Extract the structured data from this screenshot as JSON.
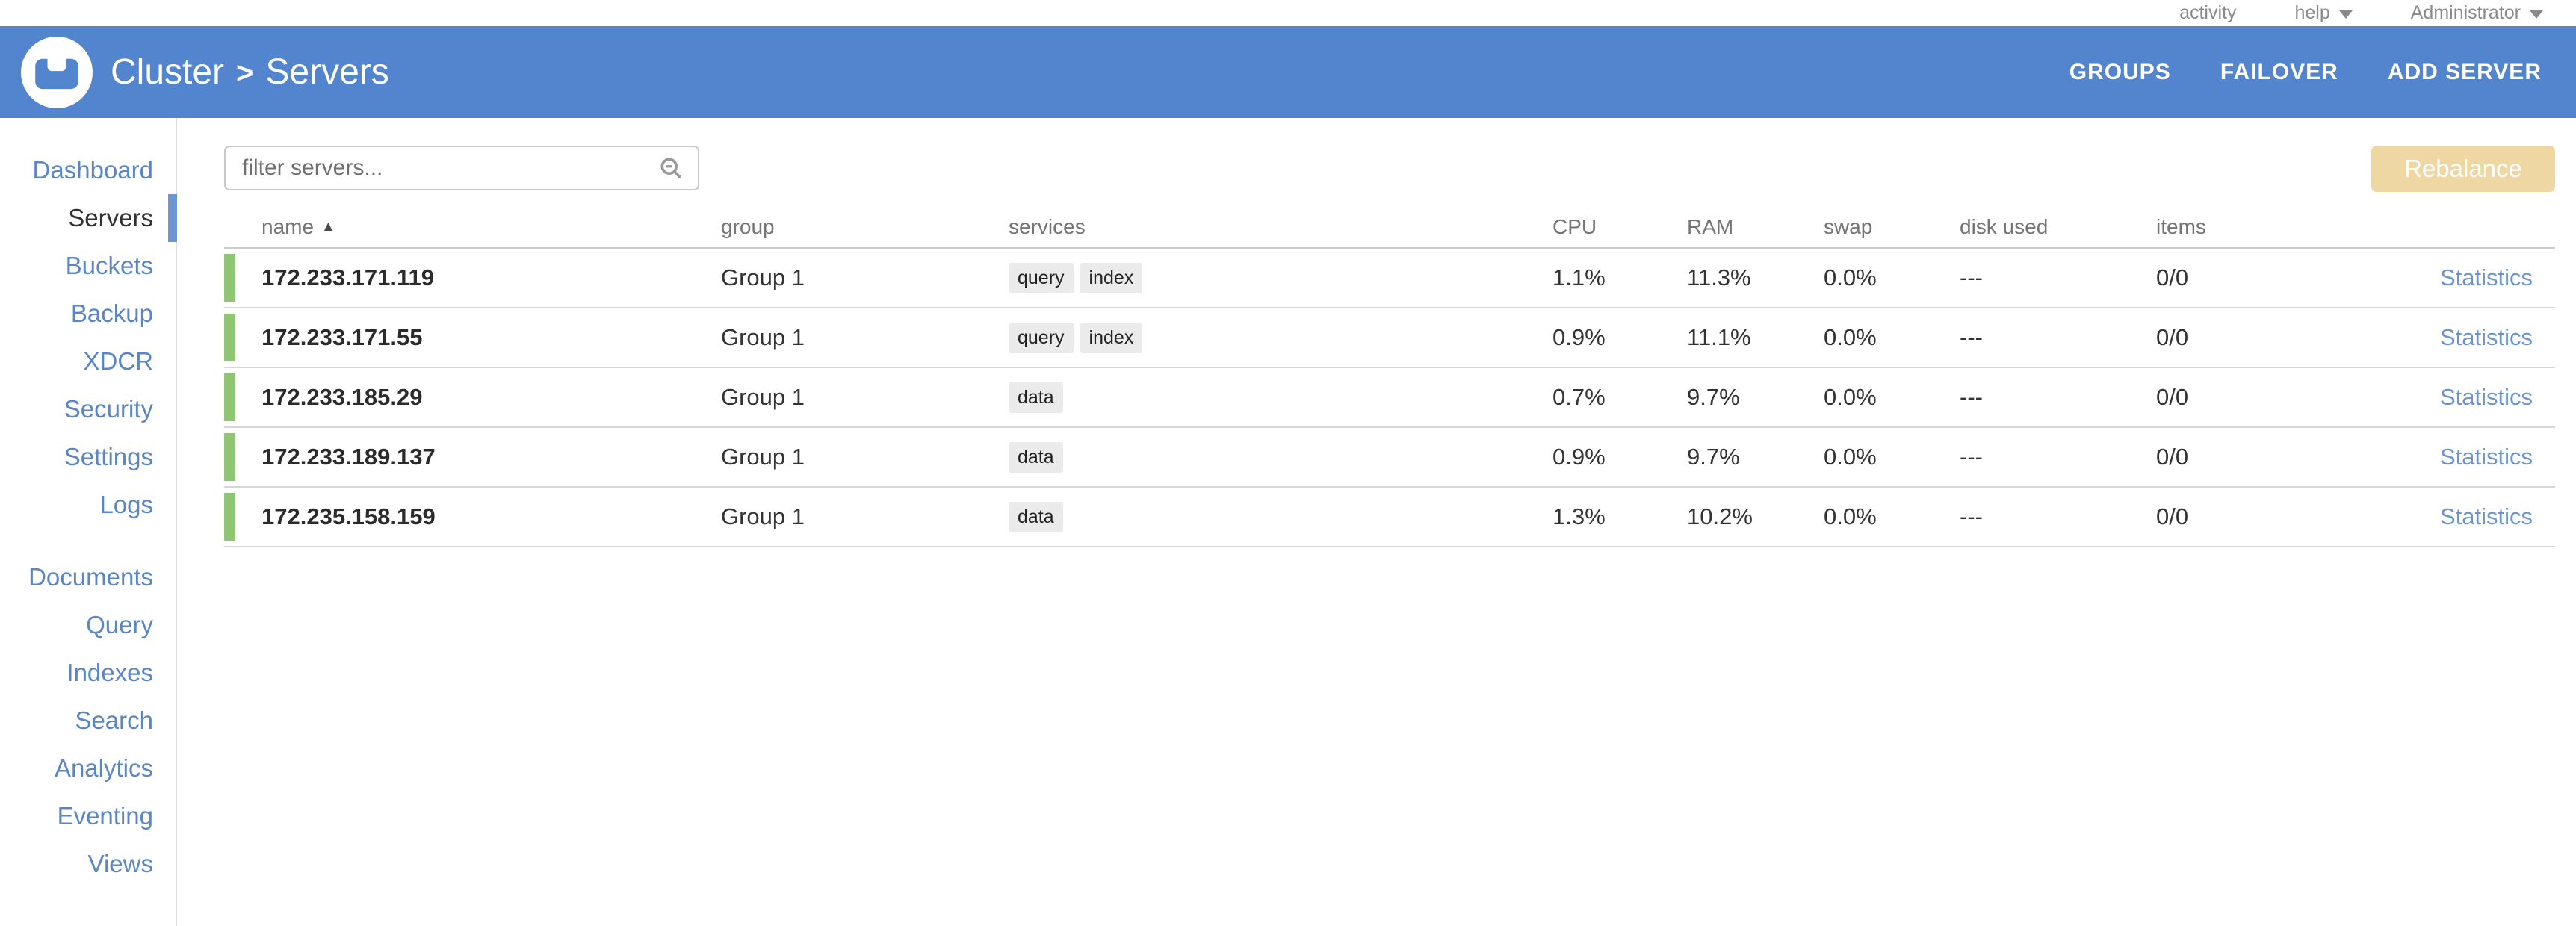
{
  "topbar": {
    "activity_label": "activity",
    "help_label": "help",
    "user_label": "Administrator"
  },
  "header": {
    "breadcrumb": {
      "cluster": "Cluster",
      "separator": ">",
      "page": "Servers"
    },
    "actions": {
      "groups": "GROUPS",
      "failover": "FAILOVER",
      "add_server": "ADD SERVER"
    }
  },
  "sidebar": {
    "selected": "Servers",
    "groups": [
      {
        "items": [
          "Dashboard",
          "Servers",
          "Buckets",
          "Backup",
          "XDCR",
          "Security",
          "Settings",
          "Logs"
        ]
      },
      {
        "items": [
          "Documents",
          "Query",
          "Indexes",
          "Search",
          "Analytics",
          "Eventing",
          "Views"
        ]
      }
    ]
  },
  "toolbar": {
    "filter_placeholder": "filter servers...",
    "filter_value": "",
    "rebalance_label": "Rebalance"
  },
  "table": {
    "sort_indicator": "▲",
    "columns": {
      "name": "name",
      "group": "group",
      "services": "services",
      "cpu": "CPU",
      "ram": "RAM",
      "swap": "swap",
      "disk_used": "disk used",
      "items": "items"
    },
    "rows": [
      {
        "name": "172.233.171.119",
        "group": "Group 1",
        "services": [
          "query",
          "index"
        ],
        "cpu": "1.1%",
        "ram": "11.3%",
        "swap": "0.0%",
        "disk_used": "---",
        "items": "0/0",
        "statistics": "Statistics"
      },
      {
        "name": "172.233.171.55",
        "group": "Group 1",
        "services": [
          "query",
          "index"
        ],
        "cpu": "0.9%",
        "ram": "11.1%",
        "swap": "0.0%",
        "disk_used": "---",
        "items": "0/0",
        "statistics": "Statistics"
      },
      {
        "name": "172.233.185.29",
        "group": "Group 1",
        "services": [
          "data"
        ],
        "cpu": "0.7%",
        "ram": "9.7%",
        "swap": "0.0%",
        "disk_used": "---",
        "items": "0/0",
        "statistics": "Statistics"
      },
      {
        "name": "172.233.189.137",
        "group": "Group 1",
        "services": [
          "data"
        ],
        "cpu": "0.9%",
        "ram": "9.7%",
        "swap": "0.0%",
        "disk_used": "---",
        "items": "0/0",
        "statistics": "Statistics"
      },
      {
        "name": "172.235.158.159",
        "group": "Group 1",
        "services": [
          "data"
        ],
        "cpu": "1.3%",
        "ram": "10.2%",
        "swap": "0.0%",
        "disk_used": "---",
        "items": "0/0",
        "statistics": "Statistics"
      }
    ]
  },
  "colors": {
    "header_blue": "#5285cd",
    "sidebar_link_blue": "#5a86c8",
    "selected_indicator_blue": "#6e97cf",
    "row_status_green": "#8fc575",
    "rebalance_tan": "#eed7a3",
    "badge_bg": "#ebebeb",
    "statistics_link_blue": "#6b93cd"
  }
}
